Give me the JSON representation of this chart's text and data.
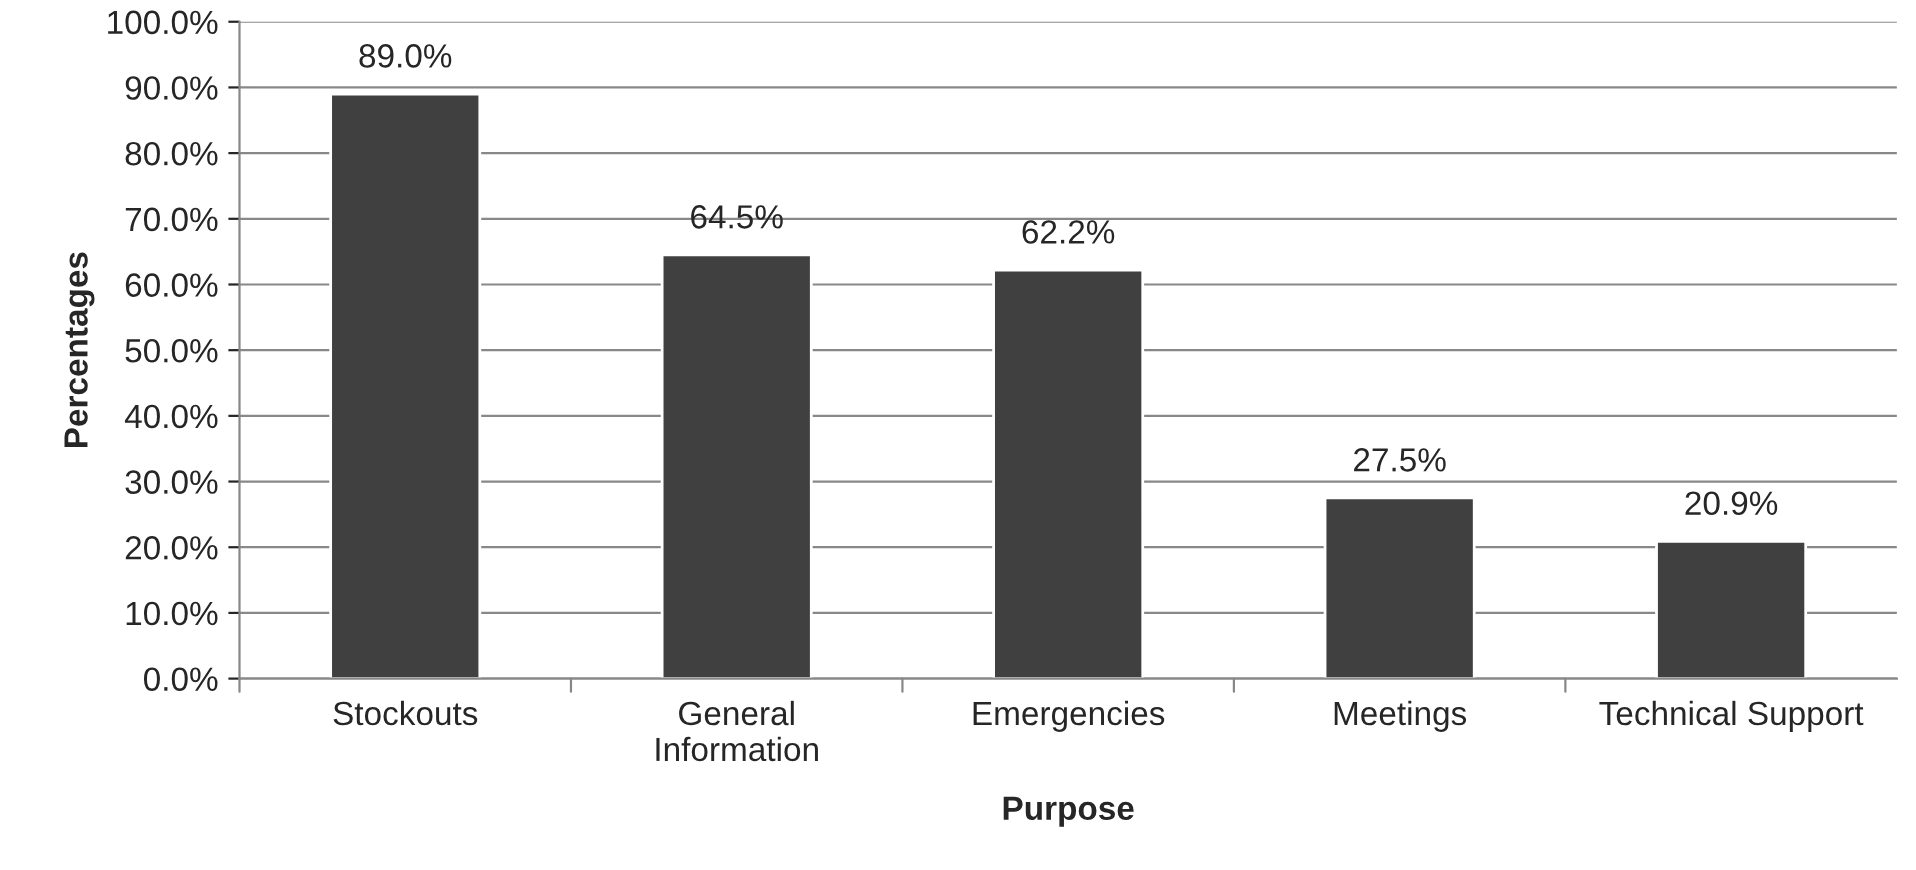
{
  "chart_data": {
    "type": "bar",
    "xlabel": "Purpose",
    "ylabel": "Percentages",
    "categories": [
      "Stockouts",
      "General\nInformation",
      "Emergencies",
      "Meetings",
      "Technical Support"
    ],
    "values": [
      89.0,
      64.5,
      62.2,
      27.5,
      20.9
    ],
    "value_labels": [
      "89.0%",
      "64.5%",
      "62.2%",
      "27.5%",
      "20.9%"
    ],
    "color": "#404040",
    "ylim": [
      0,
      100
    ],
    "yticks": [
      {
        "value": 0,
        "label": "0.0%"
      },
      {
        "value": 10,
        "label": "10.0%"
      },
      {
        "value": 20,
        "label": "20.0%"
      },
      {
        "value": 30,
        "label": "30.0%"
      },
      {
        "value": 40,
        "label": "40.0%"
      },
      {
        "value": 50,
        "label": "50.0%"
      },
      {
        "value": 60,
        "label": "60.0%"
      },
      {
        "value": 70,
        "label": "70.0%"
      },
      {
        "value": 80,
        "label": "80.0%"
      },
      {
        "value": 90,
        "label": "90.0%"
      },
      {
        "value": 100,
        "label": "100.0%"
      }
    ],
    "grid": "y",
    "legend": false
  }
}
